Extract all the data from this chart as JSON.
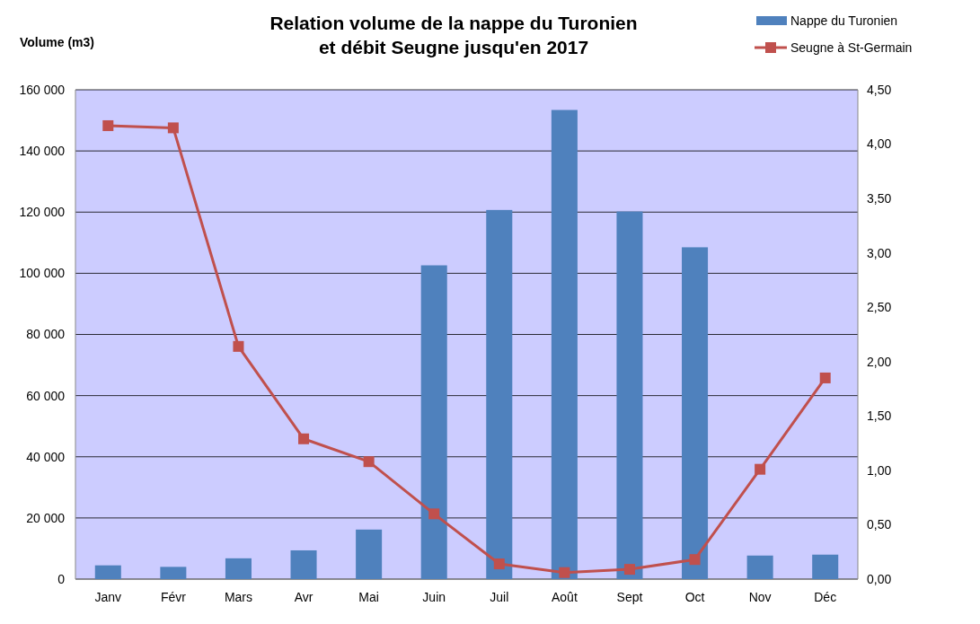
{
  "chart_data": {
    "type": "bar",
    "title": "Relation volume de la nappe du Turonien\net débit Seugne jusqu'en 2017",
    "ylabel": "Volume (m3)",
    "categories": [
      "Janv",
      "Févr",
      "Mars",
      "Avr",
      "Mai",
      "Juin",
      "Juil",
      "Août",
      "Sept",
      "Oct",
      "Nov",
      "Déc"
    ],
    "series": [
      {
        "name": "Nappe du Turonien",
        "color": "#4f81bd",
        "values": [
          4500,
          4000,
          6800,
          9400,
          16200,
          102600,
          120700,
          153400,
          120200,
          108500,
          7700,
          8000
        ]
      },
      {
        "name": "Seugne à St-Germain",
        "type": "line",
        "axis": "y2",
        "color": "#c0504d",
        "marker": "square",
        "values": [
          4.17,
          4.15,
          2.14,
          1.29,
          1.08,
          0.6,
          0.14,
          0.06,
          0.09,
          0.18,
          1.01,
          1.85
        ]
      }
    ],
    "ylim": [
      0,
      160000
    ],
    "yticks": [
      {
        "value": 0,
        "label": "0"
      },
      {
        "value": 20000,
        "label": "20 000"
      },
      {
        "value": 40000,
        "label": "40 000"
      },
      {
        "value": 60000,
        "label": "60 000"
      },
      {
        "value": 80000,
        "label": "80 000"
      },
      {
        "value": 100000,
        "label": "100 000"
      },
      {
        "value": 120000,
        "label": "120 000"
      },
      {
        "value": 140000,
        "label": "140 000"
      },
      {
        "value": 160000,
        "label": "160 000"
      }
    ],
    "y2lim": [
      0,
      4.5
    ],
    "y2ticks": [
      {
        "value": 0,
        "label": "0,00"
      },
      {
        "value": 0.5,
        "label": "0,50"
      },
      {
        "value": 1,
        "label": "1,00"
      },
      {
        "value": 1.5,
        "label": "1,50"
      },
      {
        "value": 2,
        "label": "2,00"
      },
      {
        "value": 2.5,
        "label": "2,50"
      },
      {
        "value": 3,
        "label": "3,00"
      },
      {
        "value": 3.5,
        "label": "3,50"
      },
      {
        "value": 4,
        "label": "4,00"
      },
      {
        "value": 4.5,
        "label": "4,50"
      }
    ],
    "grid": "y",
    "legend": "top right"
  }
}
